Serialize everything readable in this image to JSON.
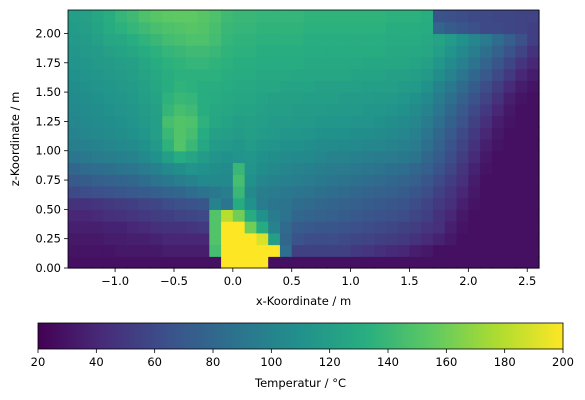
{
  "chart_data": {
    "type": "heatmap",
    "xlabel": "x-Koordinate / m",
    "ylabel": "z-Koordinate / m",
    "xlim": [
      -1.4,
      2.6
    ],
    "ylim": [
      0.0,
      2.2
    ],
    "x_ticks": [
      -1.0,
      -0.5,
      0.0,
      0.5,
      1.0,
      1.5,
      2.0,
      2.5
    ],
    "y_ticks": [
      0.0,
      0.25,
      0.5,
      0.75,
      1.0,
      1.25,
      1.5,
      1.75,
      2.0
    ],
    "x_tick_labels": [
      "−1.0",
      "−0.5",
      "0.0",
      "0.5",
      "1.0",
      "1.5",
      "2.0",
      "2.5"
    ],
    "y_tick_labels": [
      "0.00",
      "0.25",
      "0.50",
      "0.75",
      "1.00",
      "1.25",
      "1.50",
      "1.75",
      "2.00"
    ],
    "cell_size": 0.1,
    "grid": false,
    "colormap": "viridis",
    "colorbar": {
      "label": "Temperatur / °C",
      "orientation": "horizontal",
      "placement": "bottom",
      "range": [
        20,
        200
      ],
      "ticks": [
        20,
        40,
        60,
        80,
        100,
        120,
        140,
        160,
        180,
        200
      ],
      "tick_labels": [
        "20",
        "40",
        "60",
        "80",
        "100",
        "120",
        "140",
        "160",
        "180",
        "200"
      ]
    },
    "rows": [
      [
        28,
        28,
        28,
        28,
        28,
        28,
        28,
        28,
        28,
        28,
        28,
        28,
        28,
        200,
        200,
        200,
        200,
        28,
        28,
        28,
        28,
        28,
        28,
        28,
        28,
        28,
        28,
        28,
        28,
        28,
        28,
        28,
        28,
        28,
        28,
        28,
        28,
        28,
        28,
        28
      ],
      [
        30,
        30,
        30,
        30,
        32,
        32,
        32,
        32,
        35,
        35,
        35,
        35,
        145,
        200,
        200,
        200,
        200,
        200,
        85,
        55,
        55,
        55,
        55,
        55,
        50,
        48,
        45,
        42,
        40,
        35,
        32,
        28,
        28,
        28,
        28,
        28,
        28,
        28,
        28,
        28
      ],
      [
        32,
        32,
        32,
        34,
        34,
        36,
        36,
        38,
        40,
        40,
        40,
        40,
        150,
        200,
        200,
        200,
        190,
        120,
        80,
        66,
        62,
        62,
        62,
        60,
        58,
        56,
        54,
        52,
        50,
        46,
        42,
        38,
        32,
        28,
        28,
        28,
        28,
        28,
        28,
        28
      ],
      [
        36,
        36,
        36,
        38,
        38,
        40,
        42,
        44,
        46,
        46,
        48,
        50,
        150,
        200,
        200,
        160,
        130,
        100,
        82,
        72,
        70,
        68,
        68,
        66,
        64,
        62,
        60,
        58,
        55,
        52,
        48,
        44,
        36,
        30,
        28,
        28,
        28,
        28,
        28,
        28
      ],
      [
        40,
        40,
        42,
        44,
        46,
        48,
        50,
        52,
        54,
        56,
        58,
        60,
        150,
        180,
        160,
        130,
        110,
        95,
        88,
        80,
        78,
        76,
        74,
        72,
        70,
        68,
        66,
        64,
        62,
        58,
        54,
        46,
        40,
        32,
        28,
        28,
        28,
        28,
        28,
        28
      ],
      [
        46,
        46,
        48,
        50,
        52,
        54,
        56,
        58,
        62,
        64,
        66,
        68,
        100,
        90,
        130,
        110,
        95,
        90,
        88,
        84,
        82,
        80,
        78,
        76,
        74,
        72,
        70,
        68,
        66,
        62,
        56,
        50,
        44,
        36,
        30,
        28,
        28,
        28,
        28,
        28
      ],
      [
        60,
        62,
        64,
        66,
        68,
        70,
        72,
        74,
        78,
        80,
        84,
        88,
        92,
        96,
        140,
        105,
        96,
        95,
        92,
        90,
        88,
        86,
        84,
        82,
        80,
        78,
        76,
        74,
        72,
        68,
        62,
        55,
        48,
        40,
        32,
        28,
        28,
        28,
        28,
        28
      ],
      [
        70,
        72,
        74,
        76,
        78,
        80,
        84,
        88,
        92,
        96,
        100,
        104,
        105,
        104,
        145,
        110,
        102,
        100,
        98,
        96,
        94,
        92,
        90,
        88,
        86,
        84,
        82,
        80,
        78,
        74,
        68,
        60,
        52,
        44,
        34,
        28,
        28,
        28,
        28,
        28
      ],
      [
        80,
        82,
        84,
        86,
        88,
        90,
        94,
        98,
        104,
        108,
        112,
        110,
        108,
        106,
        140,
        112,
        108,
        104,
        102,
        100,
        98,
        96,
        95,
        94,
        92,
        90,
        88,
        86,
        84,
        80,
        74,
        66,
        58,
        48,
        38,
        30,
        28,
        28,
        28,
        28
      ],
      [
        90,
        92,
        94,
        96,
        98,
        100,
        104,
        110,
        120,
        130,
        125,
        118,
        112,
        110,
        112,
        114,
        110,
        108,
        106,
        104,
        104,
        102,
        100,
        100,
        98,
        96,
        95,
        94,
        92,
        88,
        80,
        72,
        62,
        52,
        42,
        32,
        28,
        28,
        28,
        28
      ],
      [
        96,
        98,
        100,
        102,
        104,
        106,
        110,
        116,
        135,
        150,
        140,
        126,
        118,
        116,
        114,
        118,
        114,
        112,
        110,
        110,
        108,
        106,
        106,
        105,
        104,
        102,
        102,
        100,
        98,
        94,
        86,
        76,
        66,
        56,
        46,
        36,
        30,
        28,
        28,
        28
      ],
      [
        100,
        102,
        104,
        106,
        108,
        110,
        114,
        120,
        140,
        150,
        145,
        130,
        122,
        120,
        118,
        120,
        118,
        116,
        114,
        114,
        112,
        110,
        110,
        110,
        108,
        108,
        106,
        104,
        102,
        98,
        90,
        80,
        70,
        60,
        50,
        40,
        32,
        28,
        28,
        28
      ],
      [
        102,
        104,
        106,
        108,
        110,
        112,
        116,
        120,
        145,
        150,
        148,
        135,
        126,
        124,
        120,
        122,
        120,
        118,
        118,
        116,
        116,
        114,
        114,
        114,
        112,
        112,
        110,
        108,
        106,
        102,
        95,
        85,
        75,
        65,
        55,
        45,
        35,
        30,
        28,
        28
      ],
      [
        104,
        106,
        108,
        110,
        112,
        114,
        118,
        122,
        138,
        145,
        142,
        132,
        128,
        126,
        124,
        124,
        122,
        120,
        120,
        118,
        118,
        118,
        116,
        116,
        116,
        114,
        114,
        112,
        110,
        106,
        100,
        90,
        80,
        70,
        60,
        50,
        40,
        32,
        28,
        28
      ],
      [
        106,
        108,
        110,
        112,
        114,
        116,
        120,
        124,
        135,
        140,
        138,
        132,
        130,
        128,
        126,
        126,
        124,
        122,
        122,
        122,
        120,
        120,
        120,
        118,
        118,
        118,
        116,
        116,
        114,
        110,
        104,
        95,
        86,
        76,
        66,
        56,
        46,
        36,
        30,
        28
      ],
      [
        108,
        110,
        112,
        114,
        116,
        118,
        122,
        126,
        132,
        136,
        134,
        132,
        132,
        130,
        128,
        128,
        126,
        126,
        124,
        124,
        124,
        122,
        122,
        122,
        122,
        120,
        120,
        120,
        118,
        116,
        110,
        100,
        92,
        82,
        72,
        62,
        52,
        42,
        34,
        30
      ],
      [
        110,
        112,
        114,
        116,
        118,
        120,
        124,
        128,
        132,
        134,
        134,
        134,
        134,
        132,
        130,
        130,
        128,
        128,
        128,
        126,
        126,
        126,
        126,
        126,
        124,
        124,
        124,
        122,
        122,
        120,
        116,
        108,
        100,
        90,
        80,
        70,
        60,
        50,
        40,
        34
      ],
      [
        112,
        114,
        116,
        118,
        120,
        122,
        126,
        130,
        134,
        136,
        138,
        138,
        136,
        134,
        132,
        132,
        130,
        130,
        130,
        130,
        128,
        128,
        128,
        128,
        128,
        126,
        126,
        126,
        126,
        124,
        122,
        114,
        106,
        98,
        88,
        78,
        68,
        58,
        48,
        40
      ],
      [
        114,
        116,
        118,
        122,
        124,
        126,
        130,
        134,
        138,
        140,
        142,
        142,
        140,
        136,
        134,
        134,
        132,
        132,
        132,
        132,
        130,
        130,
        130,
        130,
        130,
        130,
        130,
        128,
        128,
        128,
        126,
        120,
        112,
        104,
        96,
        86,
        76,
        66,
        56,
        46
      ],
      [
        116,
        118,
        122,
        126,
        128,
        132,
        136,
        140,
        144,
        146,
        148,
        148,
        144,
        138,
        136,
        136,
        134,
        134,
        134,
        134,
        132,
        132,
        132,
        132,
        132,
        132,
        132,
        130,
        130,
        130,
        128,
        124,
        118,
        110,
        102,
        94,
        84,
        74,
        64,
        54
      ],
      [
        118,
        120,
        124,
        130,
        134,
        138,
        142,
        146,
        148,
        150,
        152,
        150,
        146,
        140,
        138,
        138,
        136,
        136,
        136,
        136,
        134,
        134,
        134,
        134,
        134,
        134,
        134,
        132,
        132,
        132,
        130,
        78,
        72,
        68,
        64,
        60,
        60,
        58,
        56,
        54
      ],
      [
        120,
        122,
        126,
        132,
        138,
        142,
        148,
        152,
        154,
        155,
        155,
        152,
        148,
        142,
        140,
        140,
        138,
        138,
        138,
        138,
        136,
        136,
        136,
        136,
        136,
        136,
        136,
        134,
        134,
        134,
        132,
        66,
        64,
        62,
        60,
        60,
        58,
        58,
        56,
        56
      ]
    ]
  }
}
